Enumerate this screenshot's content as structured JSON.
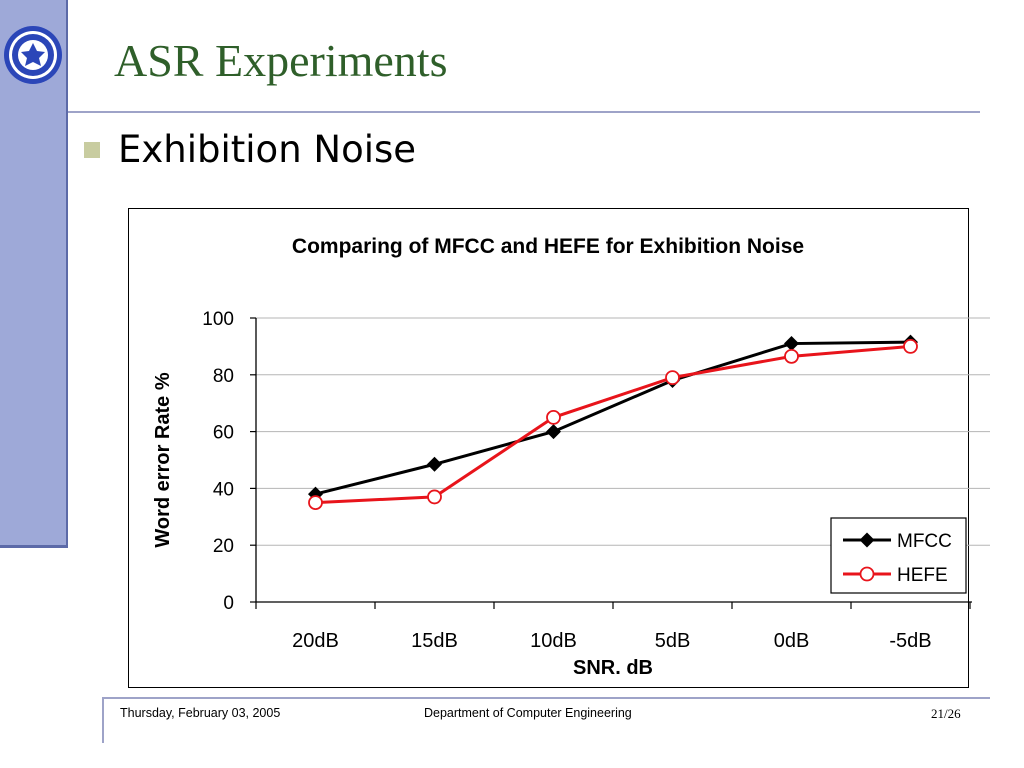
{
  "slide": {
    "title": "ASR Experiments",
    "bullet": "Exhibition Noise"
  },
  "footer": {
    "date": "Thursday, February 03, 2005",
    "department": "Department of Computer Engineering",
    "page": "21/26"
  },
  "colors": {
    "title": "#2f5f2a",
    "sidebar": "#9ea9d8",
    "mfcc": "#000000",
    "hefe": "#e8141b"
  },
  "chart_data": {
    "type": "line",
    "title": "Comparing of MFCC and HEFE for Exhibition Noise",
    "xlabel": "SNR. dB",
    "ylabel": "Word error Rate %",
    "categories": [
      "20dB",
      "15dB",
      "10dB",
      "5dB",
      "0dB",
      "-5dB"
    ],
    "ylim": [
      0,
      100
    ],
    "yticks": [
      0,
      20,
      40,
      60,
      80,
      100
    ],
    "grid": true,
    "legend": "bottom-right",
    "series": [
      {
        "name": "MFCC",
        "marker": "diamond",
        "color": "#000000",
        "values": [
          38,
          48.5,
          60,
          78,
          91,
          91.5
        ]
      },
      {
        "name": "HEFE",
        "marker": "circle",
        "color": "#e8141b",
        "values": [
          35,
          37,
          65,
          79,
          86.5,
          90
        ]
      }
    ]
  }
}
